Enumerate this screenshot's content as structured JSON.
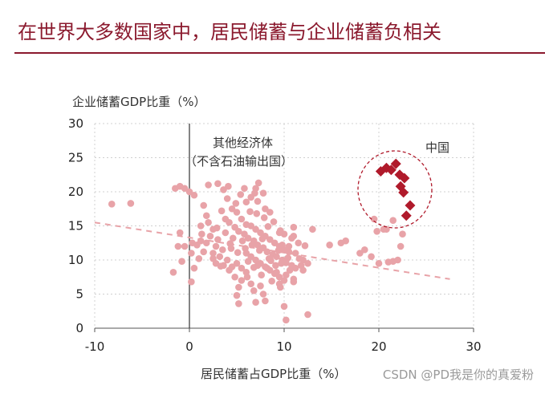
{
  "header": {
    "title": "在世界大多数国家中，居民储蓄与企业储蓄负相关"
  },
  "watermark": "CSDN @PD我是你的真爱粉",
  "colors": {
    "title": "#8b1a2e",
    "others_points": "#e8a3a8",
    "china_points": "#b01a2b",
    "trend_line": "#e8a3a8",
    "china_circle": "#b01a2b"
  },
  "chart_data": {
    "type": "scatter",
    "xlabel": "居民储蓄占GDP比重（%）",
    "ylabel": "企业储蓄GDP比重（%）",
    "xlim": [
      -10,
      30
    ],
    "ylim": [
      0,
      30
    ],
    "xticks": [
      "-10",
      "0",
      "10",
      "20",
      "30"
    ],
    "yticks": [
      "0",
      "5",
      "10",
      "15",
      "20",
      "25",
      "30"
    ],
    "grid": true,
    "annotations": {
      "others_label_line1": "其他经济体",
      "others_label_line2": "（不含石油输出国）",
      "china_label": "中国"
    },
    "trend_line": {
      "x": [
        -10,
        27.5
      ],
      "y": [
        15.5,
        7.2
      ]
    },
    "series": [
      {
        "points": [
          [
            -8.2,
            18.2
          ],
          [
            -6.2,
            18.3
          ],
          [
            -1.5,
            20.5
          ],
          [
            -1,
            20.8
          ],
          [
            -0.5,
            20.5
          ],
          [
            0,
            20
          ],
          [
            0.5,
            19.5
          ],
          [
            -1,
            14
          ],
          [
            -1.2,
            12
          ],
          [
            -0.8,
            9.8
          ],
          [
            -1.7,
            8.2
          ],
          [
            -0.5,
            12
          ],
          [
            0.3,
            12.5
          ],
          [
            0.8,
            12.2
          ],
          [
            0.2,
            11
          ],
          [
            1,
            10.2
          ],
          [
            0.5,
            8.8
          ],
          [
            0.2,
            6.8
          ],
          [
            1.5,
            18
          ],
          [
            1.8,
            16.5
          ],
          [
            2,
            15.5
          ],
          [
            1.2,
            15
          ],
          [
            2.5,
            14.5
          ],
          [
            2.2,
            13.5
          ],
          [
            3,
            13
          ],
          [
            1.8,
            12.5
          ],
          [
            2.8,
            12
          ],
          [
            3.5,
            11.5
          ],
          [
            2.5,
            11
          ],
          [
            3.2,
            10.5
          ],
          [
            4,
            10
          ],
          [
            2.8,
            9.5
          ],
          [
            3.6,
            9.2
          ],
          [
            4.5,
            9
          ],
          [
            5,
            9.5
          ],
          [
            4.2,
            8.5
          ],
          [
            5.5,
            8.8
          ],
          [
            6,
            8.2
          ],
          [
            4.8,
            7.5
          ],
          [
            5.5,
            7
          ],
          [
            6.5,
            6.5
          ],
          [
            7.5,
            6.2
          ],
          [
            5.2,
            6
          ],
          [
            6.8,
            5.5
          ],
          [
            7.8,
            5
          ],
          [
            5,
            4.8
          ],
          [
            8,
            4
          ],
          [
            5.2,
            3.6
          ],
          [
            7,
            3.8
          ],
          [
            6,
            18.5
          ],
          [
            6.5,
            19.2
          ],
          [
            7,
            20.5
          ],
          [
            7.2,
            18.6
          ],
          [
            7.8,
            19.8
          ],
          [
            8,
            17.5
          ],
          [
            8.5,
            17
          ],
          [
            4,
            19
          ],
          [
            4.5,
            17.5
          ],
          [
            5,
            17
          ],
          [
            5.5,
            16
          ],
          [
            6,
            15.2
          ],
          [
            6.5,
            15
          ],
          [
            7,
            14.5
          ],
          [
            7.5,
            14
          ],
          [
            8,
            13.5
          ],
          [
            8.5,
            13
          ],
          [
            9,
            12.5
          ],
          [
            9.5,
            12
          ],
          [
            10,
            11.5
          ],
          [
            10.5,
            11.2
          ],
          [
            3.8,
            16
          ],
          [
            4.2,
            15.5
          ],
          [
            4.8,
            14.8
          ],
          [
            5.2,
            14.2
          ],
          [
            5.8,
            13.8
          ],
          [
            6.2,
            13.2
          ],
          [
            6.8,
            12.8
          ],
          [
            7.2,
            12.2
          ],
          [
            7.8,
            11.8
          ],
          [
            8.2,
            11.2
          ],
          [
            8.8,
            10.8
          ],
          [
            9.2,
            10.5
          ],
          [
            9.8,
            10
          ],
          [
            10.2,
            9.6
          ],
          [
            10.8,
            9.2
          ],
          [
            11.2,
            8.8
          ],
          [
            6,
            11
          ],
          [
            6.5,
            10.5
          ],
          [
            7,
            10
          ],
          [
            7.5,
            9.5
          ],
          [
            8,
            9
          ],
          [
            8.5,
            8.5
          ],
          [
            9,
            8
          ],
          [
            9.5,
            7.5
          ],
          [
            10,
            7
          ],
          [
            6.2,
            9.8
          ],
          [
            7.2,
            9.2
          ],
          [
            8.2,
            8.8
          ],
          [
            9.2,
            8.2
          ],
          [
            10.2,
            7.8
          ],
          [
            11,
            7.2
          ],
          [
            12,
            10
          ],
          [
            12.5,
            9.5
          ],
          [
            11.5,
            12.5
          ],
          [
            11,
            13.5
          ],
          [
            10,
            13.8
          ],
          [
            9.5,
            14
          ],
          [
            11,
            14.8
          ],
          [
            10.5,
            12
          ],
          [
            9.8,
            12.2
          ],
          [
            12,
            8.5
          ],
          [
            11,
            6.8
          ],
          [
            9.5,
            6.5
          ],
          [
            10,
            3.2
          ],
          [
            10.2,
            1.2
          ],
          [
            12.5,
            2
          ],
          [
            14.8,
            12.2
          ],
          [
            16,
            12.5
          ],
          [
            16.5,
            12.8
          ],
          [
            18,
            11
          ],
          [
            18.5,
            11.5
          ],
          [
            19.2,
            10.5
          ],
          [
            20,
            9.5
          ],
          [
            21,
            9.7
          ],
          [
            21.5,
            9.8
          ],
          [
            22,
            10
          ],
          [
            19.5,
            16
          ],
          [
            20.5,
            14.5
          ],
          [
            21.5,
            15.8
          ],
          [
            22.5,
            13.8
          ],
          [
            22.3,
            12
          ],
          [
            20.8,
            14.5
          ],
          [
            19.8,
            14.2
          ],
          [
            3,
            21.2
          ],
          [
            2,
            21
          ],
          [
            3.6,
            20.3
          ],
          [
            4.1,
            20.8
          ],
          [
            5.8,
            20.5
          ],
          [
            7.3,
            21.3
          ],
          [
            3.8,
            14
          ],
          [
            4.6,
            13.2
          ],
          [
            5.6,
            12.8
          ],
          [
            6.6,
            12.2
          ],
          [
            5.9,
            11.7
          ],
          [
            7.4,
            11.4
          ],
          [
            8.4,
            10.2
          ],
          [
            9.4,
            11.4
          ],
          [
            9.7,
            9.5
          ],
          [
            10.4,
            10.3
          ],
          [
            11.2,
            11
          ],
          [
            6.1,
            7.5
          ],
          [
            7.6,
            7.8
          ],
          [
            8.7,
            6.9
          ],
          [
            9.6,
            6
          ],
          [
            4.4,
            11.7
          ],
          [
            3.3,
            9.1
          ],
          [
            2.5,
            10.2
          ],
          [
            1.5,
            11.2
          ],
          [
            1.2,
            12.8
          ],
          [
            2.9,
            14.7
          ],
          [
            3.4,
            17.2
          ],
          [
            4.9,
            18.3
          ],
          [
            6.4,
            17.1
          ],
          [
            7.9,
            16.2
          ],
          [
            8.9,
            15.6
          ],
          [
            9.6,
            14.3
          ],
          [
            10.8,
            13.2
          ],
          [
            11.6,
            10.2
          ],
          [
            12.2,
            12.1
          ],
          [
            13,
            14.5
          ],
          [
            5.1,
            11.1
          ],
          [
            6.8,
            8.9
          ],
          [
            8.6,
            9.9
          ],
          [
            9.1,
            9.2
          ],
          [
            10.6,
            8.5
          ],
          [
            11.8,
            9.2
          ],
          [
            7.1,
            16.8
          ],
          [
            5.4,
            19.6
          ],
          [
            6.9,
            19.8
          ],
          [
            4.3,
            12.4
          ],
          [
            7.7,
            13.1
          ],
          [
            8.3,
            14.9
          ],
          [
            1.3,
            13.8
          ]
        ]
      },
      {
        "name": "中国",
        "points": [
          [
            20.2,
            23
          ],
          [
            20.8,
            23.5
          ],
          [
            21.3,
            23.2
          ],
          [
            21.8,
            24.1
          ],
          [
            22.2,
            22.5
          ],
          [
            22.7,
            22
          ],
          [
            22.3,
            20.8
          ],
          [
            22.6,
            19.9
          ],
          [
            23.3,
            18
          ],
          [
            22.9,
            16.5
          ]
        ]
      }
    ]
  }
}
